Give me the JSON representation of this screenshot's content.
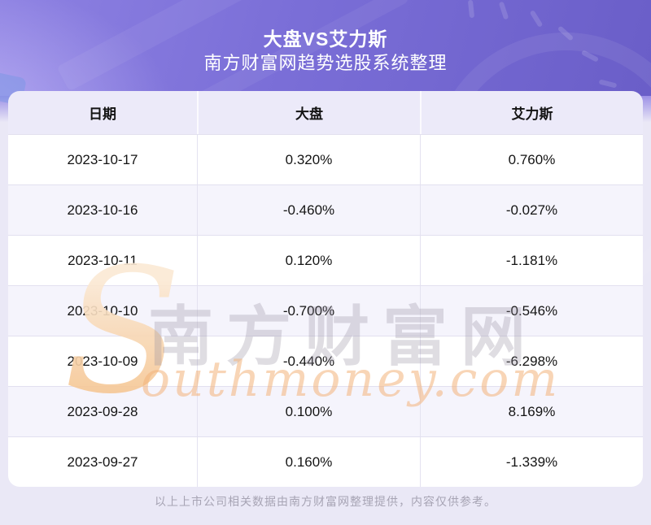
{
  "chart_data": {
    "type": "table",
    "title": "大盘VS艾力斯",
    "subtitle": "南方财富网趋势选股系统整理",
    "columns": [
      "日期",
      "大盘",
      "艾力斯"
    ],
    "rows": [
      [
        "2023-10-17",
        "0.320%",
        "0.760%"
      ],
      [
        "2023-10-16",
        "-0.460%",
        "-0.027%"
      ],
      [
        "2023-10-11",
        "0.120%",
        "-1.181%"
      ],
      [
        "2023-10-10",
        "-0.700%",
        "-0.546%"
      ],
      [
        "2023-10-09",
        "-0.440%",
        "-6.298%"
      ],
      [
        "2023-09-28",
        "0.100%",
        "8.169%"
      ],
      [
        "2023-09-27",
        "0.160%",
        "-1.339%"
      ]
    ],
    "x": [
      "2023-10-17",
      "2023-10-16",
      "2023-10-11",
      "2023-10-10",
      "2023-10-09",
      "2023-09-28",
      "2023-09-27"
    ],
    "series": [
      {
        "name": "大盘",
        "values": [
          0.32,
          -0.46,
          0.12,
          -0.7,
          -0.44,
          0.1,
          0.16
        ]
      },
      {
        "name": "艾力斯",
        "values": [
          0.76,
          -0.027,
          -1.181,
          -0.546,
          -6.298,
          8.169,
          -1.339
        ]
      }
    ],
    "unit": "%",
    "legend_position": "none",
    "grid": "table-lines"
  },
  "watermark": {
    "initial": "S",
    "cn_text": "南方财富网",
    "en_text": "outhmoney.com"
  },
  "footer": {
    "note": "以上上市公司相关数据由南方财富网整理提供，内容仅供参考。"
  },
  "colors": {
    "hero_purple_dark": "#6a5ec8",
    "hero_purple_light": "#8d81e2",
    "page_bg": "#EAE8F6",
    "thead_bg": "#ECEAF9",
    "row_bg": "#FFFFFF",
    "row_alt_bg": "#F5F4FC",
    "divider": "#E2E0EF",
    "text": "#141414",
    "footer_text": "#A7A4B4",
    "watermark_orange": "#F2B27A",
    "watermark_gray": "#9690A0"
  }
}
